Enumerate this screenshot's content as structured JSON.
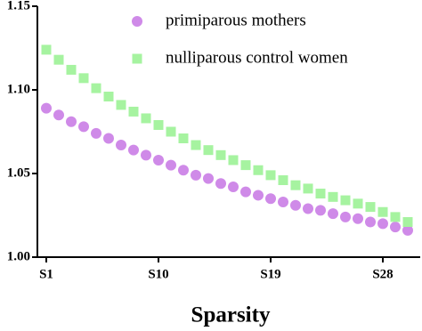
{
  "chart_data": {
    "type": "scatter",
    "x_label": "Sparsity",
    "categories": [
      "S1",
      null,
      null,
      null,
      null,
      null,
      null,
      null,
      null,
      "S10",
      null,
      null,
      null,
      null,
      null,
      null,
      null,
      null,
      "S19",
      null,
      null,
      null,
      null,
      null,
      null,
      null,
      null,
      "S28",
      null,
      null
    ],
    "series": [
      {
        "name": "primiparous mothers",
        "color": "#cf8ae8",
        "marker": "circle",
        "values": [
          1.089,
          1.085,
          1.081,
          1.078,
          1.074,
          1.071,
          1.067,
          1.064,
          1.061,
          1.058,
          1.055,
          1.052,
          1.049,
          1.047,
          1.044,
          1.042,
          1.039,
          1.037,
          1.035,
          1.033,
          1.031,
          1.029,
          1.028,
          1.026,
          1.024,
          1.023,
          1.021,
          1.02,
          1.018,
          1.016
        ]
      },
      {
        "name": "nulliparous control women",
        "color": "#a6f3a0",
        "marker": "square",
        "values": [
          1.124,
          1.118,
          1.112,
          1.107,
          1.101,
          1.096,
          1.091,
          1.087,
          1.083,
          1.079,
          1.075,
          1.071,
          1.067,
          1.064,
          1.061,
          1.058,
          1.055,
          1.052,
          1.049,
          1.046,
          1.043,
          1.041,
          1.038,
          1.036,
          1.034,
          1.032,
          1.03,
          1.027,
          1.024,
          1.021
        ]
      }
    ],
    "ylim": [
      1.0,
      1.15
    ],
    "yticks": [
      {
        "value": 1.0,
        "label": "1.00"
      },
      1.05,
      {
        "value": 1.1,
        "label": "1.10"
      },
      1.15
    ],
    "legend": "top-right"
  }
}
